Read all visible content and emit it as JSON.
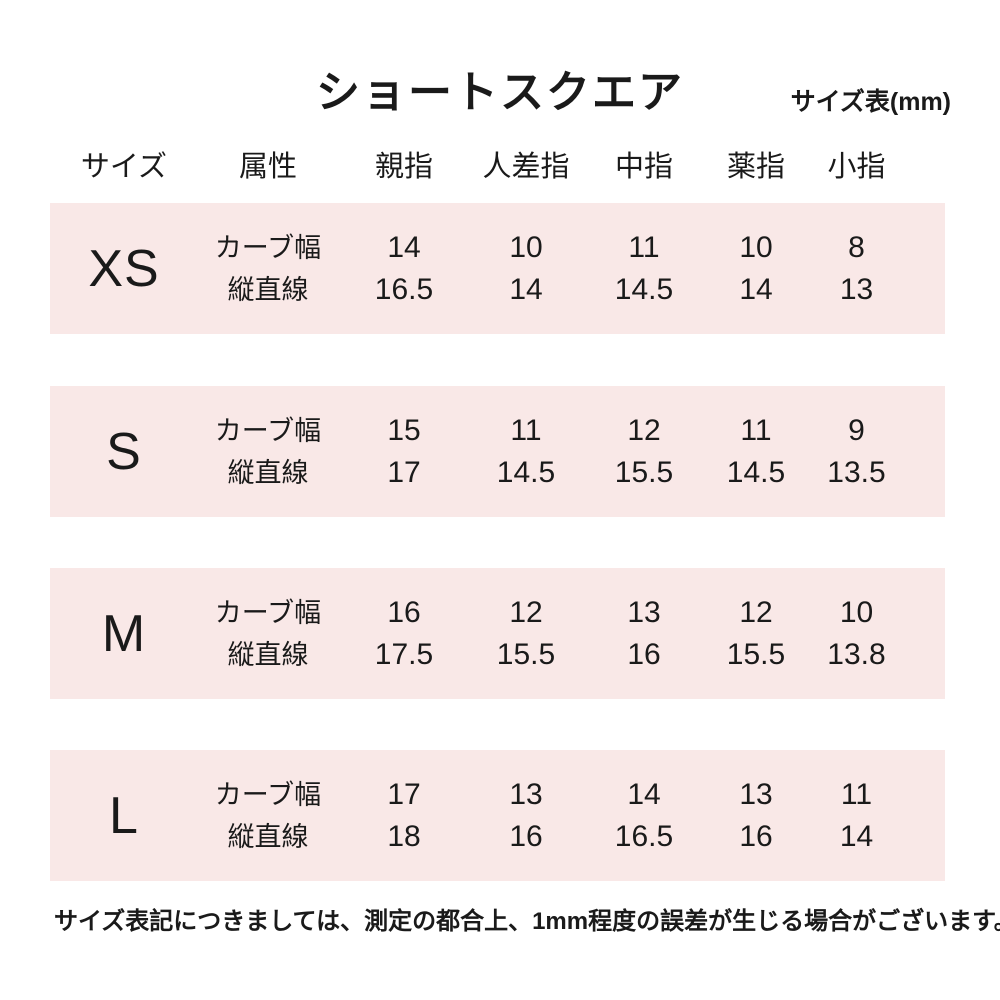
{
  "title": "ショートスクエア",
  "unit_label": "サイズ表(mm)",
  "colors": {
    "band_background": "#f9e8e7",
    "text": "#1a1a1a",
    "page_background": "#ffffff"
  },
  "table": {
    "headers": [
      "サイズ",
      "属性",
      "親指",
      "人差指",
      "中指",
      "薬指",
      "小指"
    ],
    "attr_labels": [
      "カーブ幅",
      "縦直線"
    ],
    "rows": [
      {
        "size": "XS",
        "curve_width": [
          "14",
          "10",
          "11",
          "10",
          "8"
        ],
        "vertical_line": [
          "16.5",
          "14",
          "14.5",
          "14",
          "13"
        ]
      },
      {
        "size": "S",
        "curve_width": [
          "15",
          "11",
          "12",
          "11",
          "9"
        ],
        "vertical_line": [
          "17",
          "14.5",
          "15.5",
          "14.5",
          "13.5"
        ]
      },
      {
        "size": "M",
        "curve_width": [
          "16",
          "12",
          "13",
          "12",
          "10"
        ],
        "vertical_line": [
          "17.5",
          "15.5",
          "16",
          "15.5",
          "13.8"
        ]
      },
      {
        "size": "L",
        "curve_width": [
          "17",
          "13",
          "14",
          "13",
          "11"
        ],
        "vertical_line": [
          "18",
          "16",
          "16.5",
          "16",
          "14"
        ]
      }
    ]
  },
  "footer_note": "サイズ表記につきましては、測定の都合上、1mm程度の誤差が生じる場合がございます。",
  "chart_data": {
    "type": "table",
    "title": "ショートスクエア",
    "subtitle": "サイズ表(mm)",
    "columns": [
      "サイズ",
      "属性",
      "親指",
      "人差指",
      "中指",
      "薬指",
      "小指"
    ],
    "cells": [
      [
        "XS",
        "カーブ幅",
        14,
        10,
        11,
        10,
        8
      ],
      [
        "XS",
        "縦直線",
        16.5,
        14,
        14.5,
        14,
        13
      ],
      [
        "S",
        "カーブ幅",
        15,
        11,
        12,
        11,
        9
      ],
      [
        "S",
        "縦直線",
        17,
        14.5,
        15.5,
        14.5,
        13.5
      ],
      [
        "M",
        "カーブ幅",
        16,
        12,
        13,
        12,
        10
      ],
      [
        "M",
        "縦直線",
        17.5,
        15.5,
        16,
        15.5,
        13.8
      ],
      [
        "L",
        "カーブ幅",
        17,
        13,
        14,
        13,
        11
      ],
      [
        "L",
        "縦直線",
        18,
        16,
        16.5,
        16,
        14
      ]
    ],
    "annotations": [
      "サイズ表記につきましては、測定の都合上、1mm程度の誤差が生じる場合がございます。"
    ]
  }
}
